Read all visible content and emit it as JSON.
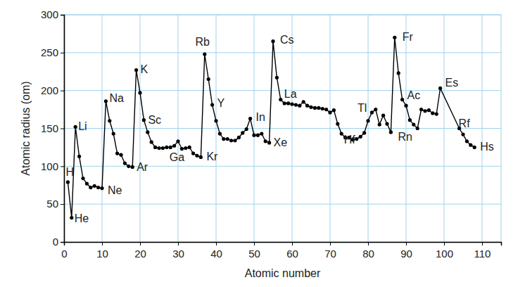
{
  "chart_data": {
    "type": "line",
    "x_label": "Atomic number",
    "y_label": "Atomic radius (om)",
    "x": [
      1,
      2,
      3,
      4,
      5,
      6,
      7,
      8,
      9,
      10,
      11,
      12,
      13,
      14,
      15,
      16,
      17,
      18,
      19,
      20,
      21,
      22,
      23,
      24,
      25,
      26,
      27,
      28,
      29,
      30,
      31,
      32,
      33,
      34,
      35,
      36,
      37,
      38,
      39,
      40,
      41,
      42,
      43,
      44,
      45,
      46,
      47,
      48,
      49,
      50,
      51,
      52,
      53,
      54,
      55,
      56,
      57,
      58,
      59,
      60,
      61,
      62,
      63,
      64,
      65,
      66,
      67,
      68,
      69,
      70,
      71,
      72,
      73,
      74,
      75,
      76,
      77,
      78,
      79,
      80,
      81,
      82,
      83,
      84,
      85,
      86,
      87,
      88,
      89,
      90,
      91,
      92,
      93,
      94,
      95,
      96,
      97,
      98,
      99,
      104,
      105,
      106,
      107,
      108
    ],
    "values": [
      79,
      32,
      152,
      113,
      84,
      77,
      72,
      74,
      72,
      71,
      186,
      160,
      143,
      117,
      115,
      104,
      100,
      99,
      227,
      197,
      161,
      145,
      132,
      125,
      124,
      124,
      125,
      125,
      127,
      133,
      123,
      124,
      125,
      117,
      114,
      112,
      248,
      215,
      181,
      160,
      143,
      136,
      136,
      134,
      134,
      138,
      144,
      149,
      163,
      141,
      141,
      143,
      133,
      131,
      265,
      217,
      188,
      183,
      183,
      182,
      181,
      180,
      185,
      180,
      178,
      177,
      177,
      176,
      175,
      171,
      174,
      156,
      143,
      138,
      138,
      135,
      136,
      139,
      144,
      160,
      171,
      175,
      155,
      167,
      156,
      145,
      270,
      223,
      188,
      180,
      161,
      155,
      150,
      175,
      173,
      174,
      170,
      169,
      203,
      150,
      142,
      133,
      128,
      125
    ],
    "color": "#000000",
    "marker": "circle",
    "xlim": [
      0,
      115
    ],
    "xticks": [
      0,
      10,
      20,
      30,
      40,
      50,
      60,
      70,
      80,
      90,
      100,
      110
    ],
    "ylim": [
      0,
      300
    ],
    "yticks": [
      0,
      50,
      100,
      150,
      200,
      250,
      300
    ],
    "grid": true,
    "annotations": [
      {
        "text": "H",
        "x": 1
      },
      {
        "text": "He",
        "x": 2
      },
      {
        "text": "Li",
        "x": 3
      },
      {
        "text": "Ne",
        "x": 10
      },
      {
        "text": "Na",
        "x": 11
      },
      {
        "text": "Ar",
        "x": 18
      },
      {
        "text": "K",
        "x": 19
      },
      {
        "text": "Sc",
        "x": 21
      },
      {
        "text": "Ga",
        "x": 31
      },
      {
        "text": "Kr",
        "x": 36
      },
      {
        "text": "Rb",
        "x": 37
      },
      {
        "text": "Y",
        "x": 39
      },
      {
        "text": "In",
        "x": 49
      },
      {
        "text": "Xe",
        "x": 54
      },
      {
        "text": "Cs",
        "x": 55
      },
      {
        "text": "La",
        "x": 57
      },
      {
        "text": "Hf",
        "x": 72
      },
      {
        "text": "Tl",
        "x": 81
      },
      {
        "text": "Rn",
        "x": 86
      },
      {
        "text": "Fr",
        "x": 87
      },
      {
        "text": "Ac",
        "x": 89
      },
      {
        "text": "Es",
        "x": 99
      },
      {
        "text": "Rf",
        "x": 104
      },
      {
        "text": "Hs",
        "x": 108
      }
    ]
  }
}
